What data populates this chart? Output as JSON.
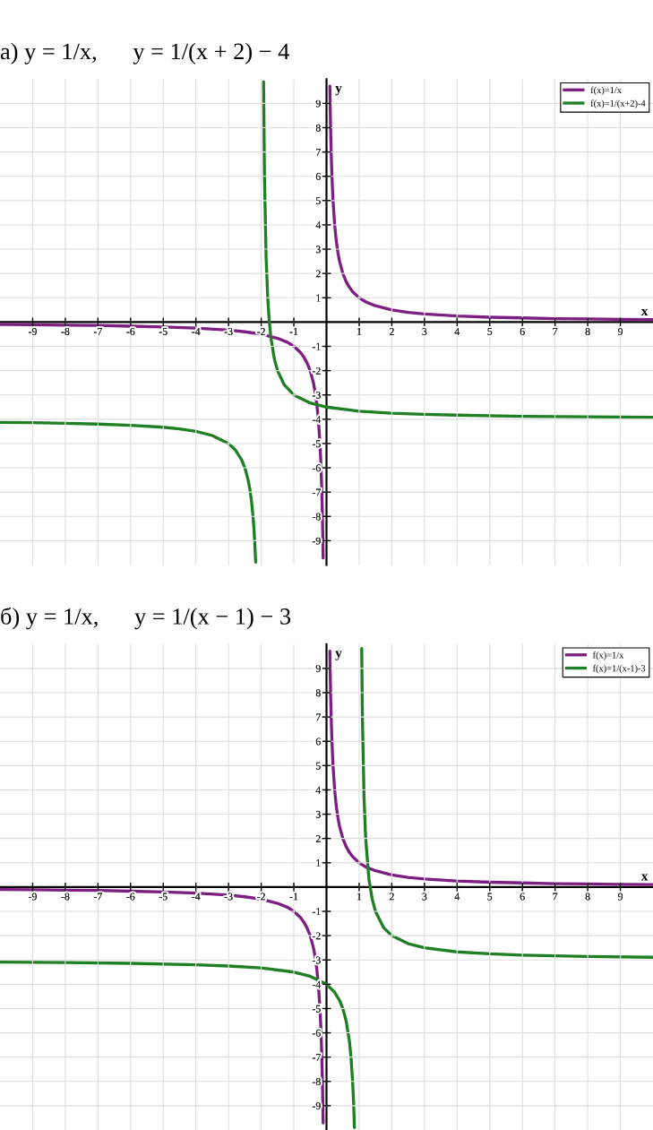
{
  "chart_data": [
    {
      "type": "line",
      "title": "а) y = 1/x,      y = 1/(x + 2) − 4",
      "xlabel": "x",
      "ylabel": "y",
      "series": [
        {
          "name": "f(x)=1/x",
          "color": "#7d1f82",
          "x": [
            -10,
            -9,
            -8,
            -7,
            -6,
            -5,
            -4,
            -3,
            -2.5,
            -2,
            -1.5,
            -1.2,
            -1,
            -0.8,
            -0.7,
            -0.6,
            -0.5,
            -0.4,
            -0.35,
            -0.3,
            -0.25,
            -0.2,
            -0.17,
            -0.15,
            -0.13,
            -0.115,
            -0.103,
            0,
            0.103,
            0.115,
            0.13,
            0.15,
            0.17,
            0.2,
            0.25,
            0.3,
            0.35,
            0.4,
            0.5,
            0.6,
            0.7,
            0.8,
            1,
            1.2,
            1.5,
            2,
            2.5,
            3,
            4,
            5,
            6,
            7,
            8,
            9,
            10
          ],
          "values": [
            -0.1,
            -0.11,
            -0.13,
            -0.14,
            -0.17,
            -0.2,
            -0.25,
            -0.33,
            -0.4,
            -0.5,
            -0.67,
            -0.83,
            -1,
            -1.25,
            -1.43,
            -1.67,
            -2,
            -2.5,
            -2.86,
            -3.33,
            -4,
            -5,
            -5.88,
            -6.67,
            -7.69,
            -8.7,
            -9.71,
            null,
            9.71,
            8.7,
            7.69,
            6.67,
            5.88,
            5,
            4,
            3.33,
            2.86,
            2.5,
            2,
            1.67,
            1.43,
            1.25,
            1,
            0.83,
            0.67,
            0.5,
            0.4,
            0.33,
            0.25,
            0.2,
            0.17,
            0.14,
            0.13,
            0.11,
            0.1
          ]
        },
        {
          "name": "f(x)=1/(x+2)-4",
          "color": "#1f7f24",
          "x": [
            -10,
            -9,
            -8,
            -7,
            -6,
            -5,
            -4.5,
            -4,
            -3.5,
            -3,
            -2.8,
            -2.6,
            -2.5,
            -2.4,
            -2.35,
            -2.3,
            -2.25,
            -2.22,
            -2.2,
            -2.17,
            -2,
            -1.928,
            -1.9,
            -1.85,
            -1.8,
            -1.75,
            -1.7,
            -1.6,
            -1.5,
            -1.3,
            -1,
            -0.5,
            0,
            1,
            2,
            3,
            4,
            6,
            8,
            10
          ],
          "values": [
            -4.13,
            -4.14,
            -4.17,
            -4.2,
            -4.25,
            -4.33,
            -4.4,
            -4.5,
            -4.67,
            -5,
            -5.25,
            -5.67,
            -6,
            -6.5,
            -6.86,
            -7.33,
            -8,
            -8.55,
            -9,
            -9.88,
            null,
            9.89,
            6,
            2.67,
            1,
            0,
            -0.67,
            -1.5,
            -2,
            -2.57,
            -3,
            -3.33,
            -3.5,
            -3.67,
            -3.75,
            -3.8,
            -3.83,
            -3.88,
            -3.9,
            -3.92
          ]
        }
      ],
      "xlim": [
        -10,
        10
      ],
      "ylim": [
        -10,
        10
      ],
      "xticks": [
        -9,
        -8,
        -7,
        -6,
        -5,
        -4,
        -3,
        -2,
        -1,
        1,
        2,
        3,
        4,
        5,
        6,
        7,
        8,
        9
      ],
      "yticks": [
        -9,
        -8,
        -7,
        -6,
        -5,
        -4,
        -3,
        -2,
        -1,
        1,
        2,
        3,
        4,
        5,
        6,
        7,
        8,
        9
      ],
      "grid": true,
      "legend": "top right",
      "line_style": "solid"
    },
    {
      "type": "line",
      "title": "б) y = 1/x,      y = 1/(x − 1) − 3",
      "xlabel": "x",
      "ylabel": "y",
      "series": [
        {
          "name": "f(x)=1/x",
          "color": "#7d1f82",
          "x": [
            -10,
            -9,
            -8,
            -7,
            -6,
            -5,
            -4,
            -3,
            -2.5,
            -2,
            -1.5,
            -1.2,
            -1,
            -0.8,
            -0.7,
            -0.6,
            -0.5,
            -0.4,
            -0.35,
            -0.3,
            -0.25,
            -0.2,
            -0.17,
            -0.15,
            -0.13,
            -0.115,
            -0.103,
            0,
            0.103,
            0.115,
            0.13,
            0.15,
            0.17,
            0.2,
            0.25,
            0.3,
            0.35,
            0.4,
            0.5,
            0.6,
            0.7,
            0.8,
            1,
            1.2,
            1.5,
            2,
            2.5,
            3,
            4,
            5,
            6,
            7,
            8,
            9,
            10
          ],
          "values": [
            -0.1,
            -0.11,
            -0.13,
            -0.14,
            -0.17,
            -0.2,
            -0.25,
            -0.33,
            -0.4,
            -0.5,
            -0.67,
            -0.83,
            -1,
            -1.25,
            -1.43,
            -1.67,
            -2,
            -2.5,
            -2.86,
            -3.33,
            -4,
            -5,
            -5.88,
            -6.67,
            -7.69,
            -8.7,
            -9.71,
            null,
            9.71,
            8.7,
            7.69,
            6.67,
            5.88,
            5,
            4,
            3.33,
            2.86,
            2.5,
            2,
            1.67,
            1.43,
            1.25,
            1,
            0.83,
            0.67,
            0.5,
            0.4,
            0.33,
            0.25,
            0.2,
            0.17,
            0.14,
            0.13,
            0.11,
            0.1
          ]
        },
        {
          "name": "f(x)=1/(x-1)-3",
          "color": "#1f7f24",
          "x": [
            -10,
            -8,
            -6,
            -4,
            -3,
            -2,
            -1,
            -0.5,
            0,
            0.25,
            0.4,
            0.5,
            0.6,
            0.7,
            0.75,
            0.8,
            0.83,
            0.855,
            1,
            1.078,
            1.1,
            1.15,
            1.2,
            1.3,
            1.4,
            1.5,
            1.75,
            2,
            2.5,
            3,
            4,
            5,
            6,
            8,
            10
          ],
          "values": [
            -3.09,
            -3.11,
            -3.14,
            -3.2,
            -3.25,
            -3.33,
            -3.5,
            -3.67,
            -4,
            -4.33,
            -4.67,
            -5,
            -5.5,
            -6.33,
            -7,
            -8,
            -8.88,
            -9.9,
            null,
            9.82,
            7,
            3.67,
            2,
            0.33,
            -0.5,
            -1,
            -1.67,
            -2,
            -2.33,
            -2.5,
            -2.67,
            -2.75,
            -2.8,
            -2.86,
            -2.89
          ]
        }
      ],
      "xlim": [
        -10,
        10
      ],
      "ylim": [
        -10,
        10
      ],
      "xticks": [
        -9,
        -8,
        -7,
        -6,
        -5,
        -4,
        -3,
        -2,
        -1,
        1,
        2,
        3,
        4,
        5,
        6,
        7,
        8,
        9
      ],
      "yticks": [
        -9,
        -8,
        -7,
        -6,
        -5,
        -4,
        -3,
        -2,
        -1,
        1,
        2,
        3,
        4,
        5,
        6,
        7,
        8,
        9
      ],
      "grid": true,
      "legend": "top right",
      "line_style": "solid"
    }
  ]
}
